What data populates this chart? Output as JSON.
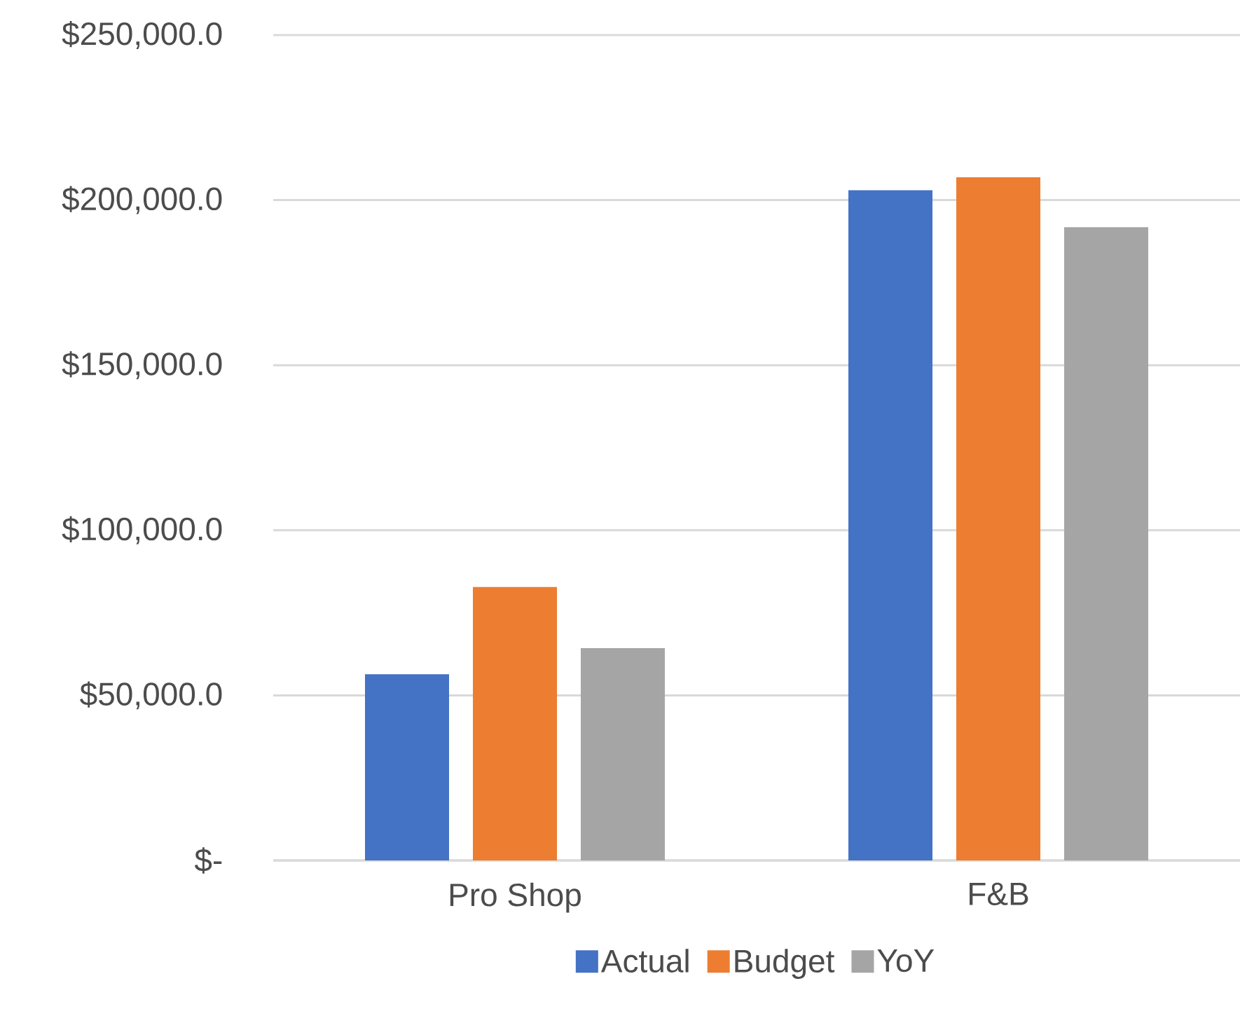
{
  "chart_data": {
    "type": "bar",
    "categories": [
      "Pro Shop",
      "F&B"
    ],
    "series": [
      {
        "name": "Actual",
        "color": "#4472c4",
        "values": [
          56400,
          203000
        ]
      },
      {
        "name": "Budget",
        "color": "#ed7d31",
        "values": [
          82800,
          206900
        ]
      },
      {
        "name": "YoY",
        "color": "#a5a5a5",
        "values": [
          64300,
          191800
        ]
      }
    ],
    "ylim": [
      0,
      250000
    ],
    "yticks": [
      {
        "value": 0,
        "label": "$-"
      },
      {
        "value": 50000,
        "label": "$50,000.0"
      },
      {
        "value": 100000,
        "label": "$100,000.0"
      },
      {
        "value": 150000,
        "label": "$150,000.0"
      },
      {
        "value": 200000,
        "label": "$200,000.0"
      },
      {
        "value": 250000,
        "label": "$250,000.0"
      }
    ],
    "grid": "y",
    "legend": "bottom"
  }
}
